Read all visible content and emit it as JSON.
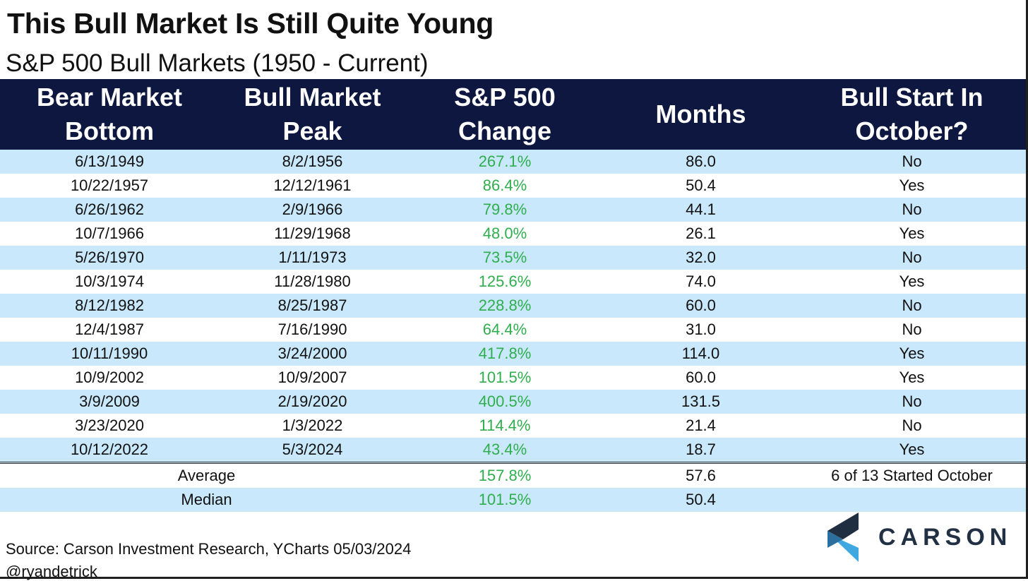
{
  "title": "This Bull Market Is Still Quite Young",
  "subtitle": "S&P 500 Bull Markets (1950 - Current)",
  "header": {
    "col1_line1": "Bear Market",
    "col1_line2": "Bottom",
    "col2_line1": "Bull Market",
    "col2_line2": "Peak",
    "col3_line1": "S&P 500",
    "col3_line2": "Change",
    "col4": "Months",
    "col5_line1": "Bull Start In",
    "col5_line2": "October?"
  },
  "chart_data": {
    "type": "table",
    "columns": [
      "Bear Market Bottom",
      "Bull Market Peak",
      "S&P 500 Change",
      "Months",
      "Bull Start In October?"
    ],
    "rows": [
      [
        "6/13/1949",
        "8/2/1956",
        "267.1%",
        "86.0",
        "No"
      ],
      [
        "10/22/1957",
        "12/12/1961",
        "86.4%",
        "50.4",
        "Yes"
      ],
      [
        "6/26/1962",
        "2/9/1966",
        "79.8%",
        "44.1",
        "No"
      ],
      [
        "10/7/1966",
        "11/29/1968",
        "48.0%",
        "26.1",
        "Yes"
      ],
      [
        "5/26/1970",
        "1/11/1973",
        "73.5%",
        "32.0",
        "No"
      ],
      [
        "10/3/1974",
        "11/28/1980",
        "125.6%",
        "74.0",
        "Yes"
      ],
      [
        "8/12/1982",
        "8/25/1987",
        "228.8%",
        "60.0",
        "No"
      ],
      [
        "12/4/1987",
        "7/16/1990",
        "64.4%",
        "31.0",
        "No"
      ],
      [
        "10/11/1990",
        "3/24/2000",
        "417.8%",
        "114.0",
        "Yes"
      ],
      [
        "10/9/2002",
        "10/9/2007",
        "101.5%",
        "60.0",
        "Yes"
      ],
      [
        "3/9/2009",
        "2/19/2020",
        "400.5%",
        "131.5",
        "No"
      ],
      [
        "3/23/2020",
        "1/3/2022",
        "114.4%",
        "21.4",
        "No"
      ],
      [
        "10/12/2022",
        "5/3/2024",
        "43.4%",
        "18.7",
        "Yes"
      ]
    ],
    "summary": [
      {
        "label": "Average",
        "change": "157.8%",
        "months": "57.6",
        "october": "6 of 13 Started October"
      },
      {
        "label": "Median",
        "change": "101.5%",
        "months": "50.4",
        "october": ""
      }
    ]
  },
  "colors": {
    "header_bg": "#0d1740",
    "stripe": "#c9e8fb",
    "change_text": "#2fae4e",
    "logo_dark": "#1f2e40",
    "logo_accent": "#3fa8e0"
  },
  "footer": {
    "source": "Source: Carson Investment Research, YCharts 05/03/2024",
    "handle": "@ryandetrick"
  },
  "logo": {
    "text": "CARSON",
    "icon": "carson-chevron-icon"
  }
}
